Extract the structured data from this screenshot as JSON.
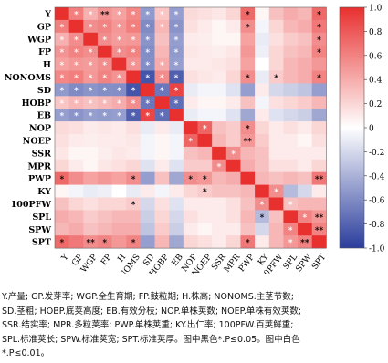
{
  "chart_data": {
    "type": "heatmap",
    "variables": [
      "Y",
      "GP",
      "WGP",
      "FP",
      "H",
      "NONOMS",
      "SD",
      "HOBP",
      "EB",
      "NOP",
      "NOEP",
      "SSR",
      "MPR",
      "PWP",
      "KY",
      "100PFW",
      "SPL",
      "SPW",
      "SPT"
    ],
    "values": [
      [
        1.0,
        0.62,
        0.38,
        0.52,
        0.45,
        0.58,
        -0.52,
        0.28,
        -0.5,
        0.18,
        0.15,
        0.12,
        0.2,
        0.72,
        0.05,
        0.3,
        0.4,
        0.35,
        0.72
      ],
      [
        0.62,
        1.0,
        0.55,
        0.6,
        0.5,
        0.62,
        -0.6,
        0.35,
        -0.55,
        0.15,
        0.1,
        0.05,
        0.1,
        0.55,
        -0.05,
        0.2,
        0.35,
        0.4,
        0.65
      ],
      [
        0.38,
        0.55,
        1.0,
        0.55,
        0.48,
        0.5,
        -0.55,
        0.3,
        -0.5,
        0.1,
        0.08,
        0.05,
        0.05,
        0.45,
        -0.1,
        0.15,
        0.25,
        0.3,
        0.55
      ],
      [
        0.52,
        0.6,
        0.55,
        1.0,
        0.55,
        0.6,
        -0.58,
        0.35,
        -0.52,
        0.12,
        0.1,
        0.08,
        0.12,
        0.5,
        -0.08,
        0.2,
        0.3,
        0.35,
        0.6
      ],
      [
        0.45,
        0.5,
        0.48,
        0.55,
        1.0,
        0.52,
        -0.58,
        0.4,
        -0.5,
        0.1,
        0.1,
        0.12,
        0.15,
        0.45,
        0.0,
        0.2,
        0.35,
        0.4,
        0.5
      ],
      [
        0.58,
        0.62,
        0.5,
        0.6,
        0.52,
        1.0,
        -0.88,
        0.55,
        -0.82,
        0.15,
        0.12,
        0.1,
        0.2,
        0.55,
        -0.1,
        0.25,
        0.35,
        0.4,
        0.6
      ],
      [
        -0.52,
        -0.6,
        -0.55,
        -0.58,
        -0.58,
        -0.88,
        1.0,
        -0.7,
        0.9,
        -0.1,
        -0.05,
        -0.05,
        -0.15,
        -0.5,
        0.1,
        -0.2,
        -0.25,
        -0.3,
        -0.5
      ],
      [
        0.28,
        0.35,
        0.3,
        0.35,
        0.4,
        0.55,
        -0.7,
        1.0,
        -0.75,
        0.1,
        0.05,
        0.05,
        0.1,
        0.3,
        -0.05,
        0.15,
        0.2,
        0.25,
        0.35
      ],
      [
        -0.5,
        -0.55,
        -0.5,
        -0.52,
        -0.5,
        -0.82,
        0.9,
        -0.75,
        1.0,
        -0.1,
        -0.05,
        -0.05,
        -0.15,
        -0.45,
        0.1,
        -0.15,
        -0.2,
        -0.25,
        -0.45
      ],
      [
        0.18,
        0.15,
        0.1,
        0.12,
        0.1,
        0.15,
        -0.1,
        0.1,
        -0.1,
        1.0,
        0.75,
        0.3,
        0.25,
        0.55,
        0.2,
        0.1,
        0.15,
        0.1,
        0.2
      ],
      [
        0.15,
        0.1,
        0.08,
        0.1,
        0.1,
        0.12,
        -0.05,
        0.05,
        -0.05,
        0.75,
        1.0,
        0.35,
        0.25,
        0.5,
        0.25,
        0.1,
        0.1,
        0.05,
        0.15
      ],
      [
        0.12,
        0.05,
        0.05,
        0.08,
        0.12,
        0.1,
        -0.05,
        0.05,
        -0.05,
        0.3,
        0.35,
        1.0,
        0.55,
        0.35,
        0.3,
        0.1,
        0.1,
        0.1,
        0.1
      ],
      [
        0.2,
        0.1,
        0.05,
        0.12,
        0.15,
        0.2,
        -0.15,
        0.1,
        -0.15,
        0.25,
        0.25,
        0.55,
        1.0,
        0.4,
        0.3,
        0.15,
        0.15,
        0.1,
        0.2
      ],
      [
        0.72,
        0.55,
        0.45,
        0.5,
        0.45,
        0.55,
        -0.5,
        0.3,
        -0.45,
        0.55,
        0.5,
        0.35,
        0.4,
        1.0,
        0.35,
        0.3,
        0.35,
        0.3,
        0.65
      ],
      [
        0.05,
        -0.05,
        -0.1,
        -0.08,
        0.0,
        -0.1,
        0.1,
        -0.05,
        0.1,
        0.2,
        0.25,
        0.3,
        0.3,
        0.35,
        1.0,
        0.55,
        -0.35,
        -0.2,
        0.1
      ],
      [
        0.3,
        0.2,
        0.15,
        0.2,
        0.2,
        0.25,
        -0.2,
        0.15,
        -0.15,
        0.1,
        0.1,
        0.1,
        0.15,
        0.3,
        0.55,
        1.0,
        0.3,
        0.35,
        0.35
      ],
      [
        0.4,
        0.35,
        0.25,
        0.3,
        0.35,
        0.35,
        -0.25,
        0.2,
        -0.2,
        0.15,
        0.1,
        0.1,
        0.15,
        0.35,
        -0.35,
        0.3,
        1.0,
        0.6,
        0.5
      ],
      [
        0.35,
        0.4,
        0.3,
        0.35,
        0.4,
        0.4,
        -0.3,
        0.25,
        -0.25,
        0.1,
        0.05,
        0.1,
        0.1,
        0.3,
        -0.2,
        0.35,
        0.6,
        1.0,
        0.6
      ],
      [
        0.72,
        0.65,
        0.55,
        0.6,
        0.5,
        0.6,
        -0.5,
        0.35,
        -0.45,
        0.2,
        0.15,
        0.1,
        0.2,
        0.65,
        0.1,
        0.35,
        0.5,
        0.6,
        1.0
      ]
    ],
    "significance_marks": [
      [
        null,
        "*",
        "*",
        "**",
        "*",
        "*",
        "*",
        "*",
        "*",
        null,
        null,
        null,
        null,
        "*",
        null,
        null,
        null,
        null,
        "*"
      ],
      [
        "*",
        null,
        "*",
        "*",
        "*",
        "*",
        "*",
        "*",
        "*",
        null,
        null,
        null,
        null,
        "*",
        null,
        null,
        null,
        null,
        "*"
      ],
      [
        "*",
        "*",
        null,
        "*",
        "*",
        "*",
        "*",
        null,
        "*",
        null,
        null,
        null,
        null,
        null,
        null,
        null,
        null,
        null,
        "*"
      ],
      [
        "*",
        "*",
        "*",
        null,
        "*",
        "*",
        "*",
        null,
        "*",
        null,
        null,
        null,
        null,
        null,
        null,
        null,
        null,
        null,
        "*"
      ],
      [
        "*",
        "*",
        "*",
        "*",
        null,
        "*",
        "*",
        "*",
        "*",
        null,
        null,
        null,
        null,
        null,
        null,
        null,
        null,
        null,
        null
      ],
      [
        "*",
        "*",
        "*",
        "*",
        "*",
        null,
        "*",
        "*",
        "*",
        null,
        null,
        null,
        null,
        "*",
        null,
        "*",
        null,
        null,
        "*"
      ],
      [
        "*",
        "*",
        "*",
        "*",
        "*",
        "*",
        null,
        "*",
        "*",
        null,
        null,
        null,
        null,
        null,
        null,
        null,
        null,
        null,
        null
      ],
      [
        "*",
        "*",
        "*",
        "*",
        "*",
        "*",
        "*",
        null,
        "*",
        null,
        null,
        null,
        null,
        null,
        null,
        null,
        null,
        null,
        null
      ],
      [
        "*",
        "*",
        "*",
        "*",
        "*",
        "*",
        "*",
        "*",
        null,
        null,
        null,
        null,
        null,
        null,
        null,
        null,
        null,
        null,
        null
      ],
      [
        null,
        null,
        null,
        null,
        null,
        null,
        null,
        null,
        null,
        null,
        "*",
        null,
        null,
        "*",
        null,
        null,
        null,
        null,
        null
      ],
      [
        null,
        null,
        null,
        null,
        null,
        null,
        null,
        null,
        null,
        "*",
        null,
        null,
        null,
        "**",
        null,
        null,
        null,
        null,
        null
      ],
      [
        null,
        null,
        null,
        null,
        null,
        null,
        null,
        null,
        null,
        null,
        null,
        null,
        "*",
        null,
        null,
        null,
        null,
        null,
        null
      ],
      [
        null,
        null,
        null,
        null,
        null,
        null,
        null,
        null,
        null,
        null,
        null,
        "*",
        null,
        null,
        null,
        null,
        null,
        null,
        null
      ],
      [
        "*",
        null,
        null,
        null,
        null,
        "*",
        null,
        null,
        null,
        "*",
        "*",
        null,
        null,
        null,
        null,
        null,
        null,
        null,
        "**"
      ],
      [
        null,
        null,
        null,
        null,
        null,
        null,
        null,
        null,
        null,
        null,
        "*",
        null,
        null,
        null,
        null,
        "*",
        null,
        null,
        null
      ],
      [
        null,
        null,
        null,
        null,
        null,
        "*",
        null,
        null,
        null,
        null,
        null,
        null,
        null,
        null,
        "*",
        null,
        "*",
        null,
        null
      ],
      [
        null,
        null,
        null,
        null,
        null,
        null,
        null,
        null,
        null,
        null,
        null,
        null,
        null,
        null,
        "*",
        null,
        null,
        "*",
        "**"
      ],
      [
        null,
        null,
        null,
        null,
        null,
        null,
        null,
        null,
        null,
        null,
        null,
        null,
        null,
        null,
        null,
        null,
        "*",
        null,
        "**"
      ],
      [
        "*",
        null,
        "**",
        "*",
        null,
        "*",
        null,
        null,
        null,
        null,
        null,
        null,
        null,
        "*",
        null,
        null,
        "*",
        "**",
        null
      ]
    ],
    "mark_colors": {
      "black": "#000000",
      "white": "#ffffff"
    },
    "white_marks": [
      [
        0,
        1
      ],
      [
        0,
        2
      ],
      [
        0,
        4
      ],
      [
        0,
        5
      ],
      [
        0,
        6
      ],
      [
        0,
        7
      ],
      [
        0,
        8
      ],
      [
        1,
        0
      ],
      [
        1,
        2
      ],
      [
        1,
        3
      ],
      [
        1,
        4
      ],
      [
        1,
        5
      ],
      [
        1,
        6
      ],
      [
        1,
        7
      ],
      [
        1,
        8
      ],
      [
        2,
        0
      ],
      [
        2,
        1
      ],
      [
        2,
        3
      ],
      [
        2,
        4
      ],
      [
        2,
        5
      ],
      [
        2,
        6
      ],
      [
        2,
        8
      ],
      [
        3,
        0
      ],
      [
        3,
        1
      ],
      [
        3,
        2
      ],
      [
        3,
        4
      ],
      [
        3,
        5
      ],
      [
        3,
        6
      ],
      [
        3,
        8
      ],
      [
        4,
        0
      ],
      [
        4,
        1
      ],
      [
        4,
        2
      ],
      [
        4,
        3
      ],
      [
        4,
        5
      ],
      [
        4,
        6
      ],
      [
        4,
        7
      ],
      [
        4,
        8
      ],
      [
        5,
        0
      ],
      [
        5,
        1
      ],
      [
        5,
        2
      ],
      [
        5,
        3
      ],
      [
        5,
        4
      ],
      [
        5,
        6
      ],
      [
        5,
        7
      ],
      [
        5,
        8
      ],
      [
        6,
        0
      ],
      [
        6,
        1
      ],
      [
        6,
        2
      ],
      [
        6,
        3
      ],
      [
        6,
        4
      ],
      [
        6,
        5
      ],
      [
        6,
        7
      ],
      [
        6,
        8
      ],
      [
        7,
        0
      ],
      [
        7,
        1
      ],
      [
        7,
        2
      ],
      [
        7,
        3
      ],
      [
        7,
        4
      ],
      [
        7,
        5
      ],
      [
        7,
        6
      ],
      [
        7,
        8
      ],
      [
        8,
        0
      ],
      [
        8,
        1
      ],
      [
        8,
        2
      ],
      [
        8,
        3
      ],
      [
        8,
        4
      ],
      [
        8,
        5
      ],
      [
        8,
        6
      ],
      [
        8,
        7
      ],
      [
        9,
        10
      ],
      [
        10,
        9
      ],
      [
        11,
        12
      ],
      [
        12,
        11
      ],
      [
        14,
        15
      ],
      [
        15,
        14
      ],
      [
        15,
        16
      ],
      [
        16,
        17
      ],
      [
        17,
        16
      ],
      [
        18,
        16
      ]
    ],
    "colorbar": {
      "min": -1.0,
      "max": 1.0,
      "ticks": [
        "1.0",
        "0.8",
        "0.6",
        "0.4",
        "0.2",
        "0",
        "-0.2",
        "-0.4",
        "-0.6",
        "-0.8",
        "-1.0"
      ],
      "colors": {
        "negative": "#2b3d9c",
        "zero": "#ffffff",
        "positive": "#e8302f"
      }
    },
    "xlabel": "",
    "ylabel": "",
    "title": ""
  },
  "caption": {
    "lines": [
      "Y.产量; GP.发芽率; WGP.全生育期; FP.鼓粒期; H.株高; NONOMS.主茎节数;",
      "SD.茎粗; HOBP.底荚高度; EB.有效分枝; NOP.单株荚数; NOEP.单株有效荚数;",
      "SSR.结实率; MPR.多粒荚率; PWP.单株荚重; KY.出仁率; 100PFW.百荚鲜重;",
      "SPL.标准荚长; SPW.标准荚宽; SPT.标准荚厚。图中黑色*.P≤0.05。图中白色",
      "*.P≤0.01。"
    ]
  }
}
